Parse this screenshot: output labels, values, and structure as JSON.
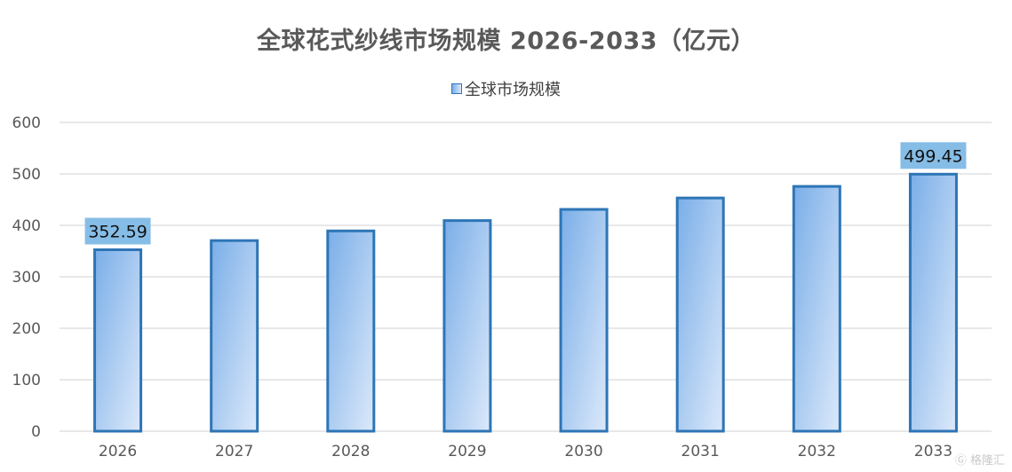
{
  "chart_data": {
    "type": "bar",
    "title": "全球花式纱线市场规模 2026-2033（亿元）",
    "categories": [
      "2026",
      "2027",
      "2028",
      "2029",
      "2030",
      "2031",
      "2032",
      "2033"
    ],
    "series": [
      {
        "name": "全球市场规模",
        "values": [
          352.59,
          370.4,
          389.2,
          409.3,
          431.0,
          453.2,
          475.7,
          499.45
        ]
      }
    ],
    "data_labels": [
      {
        "category": "2026",
        "text": "352.59"
      },
      {
        "category": "2033",
        "text": "499.45"
      }
    ],
    "ylim": [
      0,
      600
    ],
    "yticks": [
      0,
      100,
      200,
      300,
      400,
      500,
      600
    ],
    "grid": true,
    "legend_position": "top",
    "colors": {
      "bar_stroke": "#2e75b6",
      "bar_fill_start": "#7aaee8",
      "bar_fill_end": "#dce9fa",
      "label_bg": "#86bde6",
      "grid": "#d9d9d9",
      "axis_text": "#595959"
    }
  },
  "watermark": {
    "icon": "gelonghui-logo-icon",
    "text": "格隆汇"
  }
}
